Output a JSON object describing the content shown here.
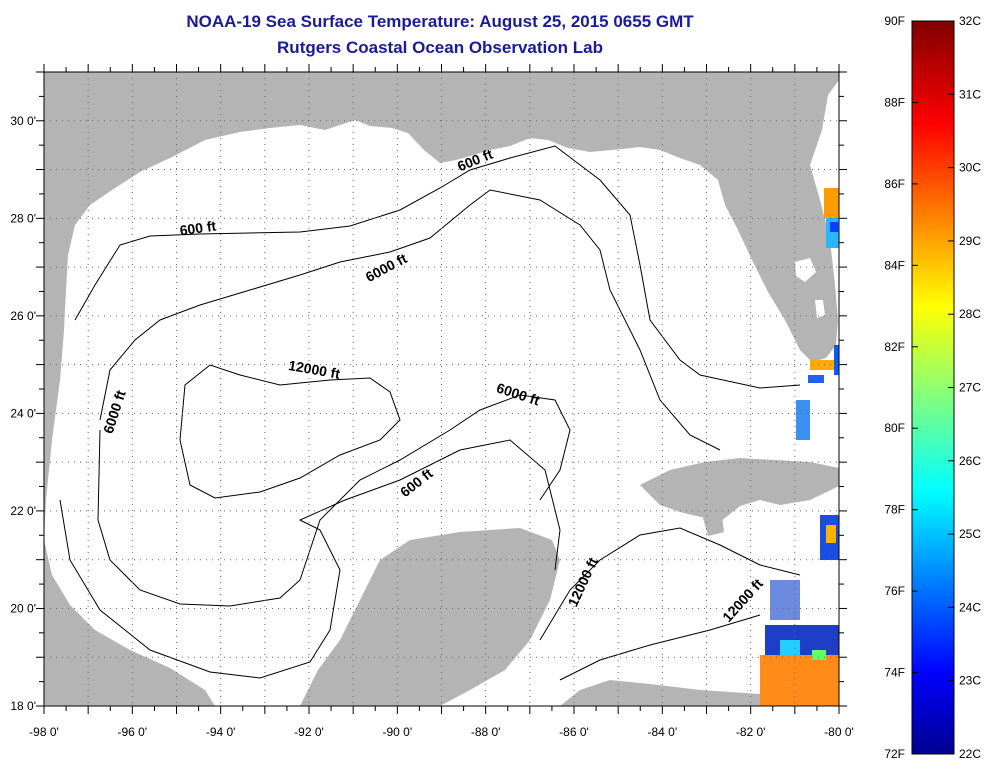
{
  "title": "NOAA-19 Sea Surface Temperature:  August 25, 2015 0655 GMT",
  "subtitle": "Rutgers Coastal Ocean Observation Lab",
  "colors": {
    "land": "#b4b4b4",
    "water": "#ffffff",
    "title": "#1a1aa0"
  },
  "map": {
    "lon_range": [
      -98,
      -80
    ],
    "lat_range": [
      18,
      31
    ],
    "x_ticks": [
      {
        "lon": -98,
        "label": "-98 0'"
      },
      {
        "lon": -96,
        "label": "-96 0'"
      },
      {
        "lon": -94,
        "label": "-94 0'"
      },
      {
        "lon": -92,
        "label": "-92 0'"
      },
      {
        "lon": -90,
        "label": "-90 0'"
      },
      {
        "lon": -88,
        "label": "-88 0'"
      },
      {
        "lon": -86,
        "label": "-86 0'"
      },
      {
        "lon": -84,
        "label": "-84 0'"
      },
      {
        "lon": -82,
        "label": "-82 0'"
      },
      {
        "lon": -80,
        "label": "-80 0'"
      }
    ],
    "y_ticks": [
      {
        "lat": 18,
        "label": "18 0'"
      },
      {
        "lat": 20,
        "label": "20 0'"
      },
      {
        "lat": 22,
        "label": "22 0'"
      },
      {
        "lat": 24,
        "label": "24 0'"
      },
      {
        "lat": 26,
        "label": "26 0'"
      },
      {
        "lat": 28,
        "label": "28 0'"
      },
      {
        "lat": 30,
        "label": "30 0'"
      }
    ],
    "grid": "dotted",
    "isobath_labels": [
      {
        "text": "600 ft",
        "lon": -88.2,
        "lat": 29.1,
        "angle": -22
      },
      {
        "text": "600 ft",
        "lon": -94.5,
        "lat": 27.7,
        "angle": -8
      },
      {
        "text": "6000 ft",
        "lon": -90.2,
        "lat": 26.9,
        "angle": -28
      },
      {
        "text": "12000 ft",
        "lon": -91.9,
        "lat": 24.8,
        "angle": 10
      },
      {
        "text": "6000 ft",
        "lon": -87.3,
        "lat": 24.3,
        "angle": 18
      },
      {
        "text": "6000 ft",
        "lon": -96.3,
        "lat": 24.0,
        "angle": -72
      },
      {
        "text": "600 ft",
        "lon": -89.5,
        "lat": 22.5,
        "angle": -38
      },
      {
        "text": "12000 ft",
        "lon": -85.7,
        "lat": 20.5,
        "angle": -65
      },
      {
        "text": "12000 ft",
        "lon": -82.1,
        "lat": 20.1,
        "angle": -48
      }
    ]
  },
  "colorbar": {
    "left_labels": [
      "90F",
      "88F",
      "86F",
      "84F",
      "82F",
      "80F",
      "78F",
      "76F",
      "74F",
      "72F"
    ],
    "right_labels": [
      "32C",
      "31C",
      "30C",
      "29C",
      "28C",
      "27C",
      "26C",
      "25C",
      "24C",
      "23C",
      "22C"
    ],
    "colormap": "jet",
    "range_F": [
      72,
      90
    ],
    "range_C": [
      22,
      32
    ]
  }
}
